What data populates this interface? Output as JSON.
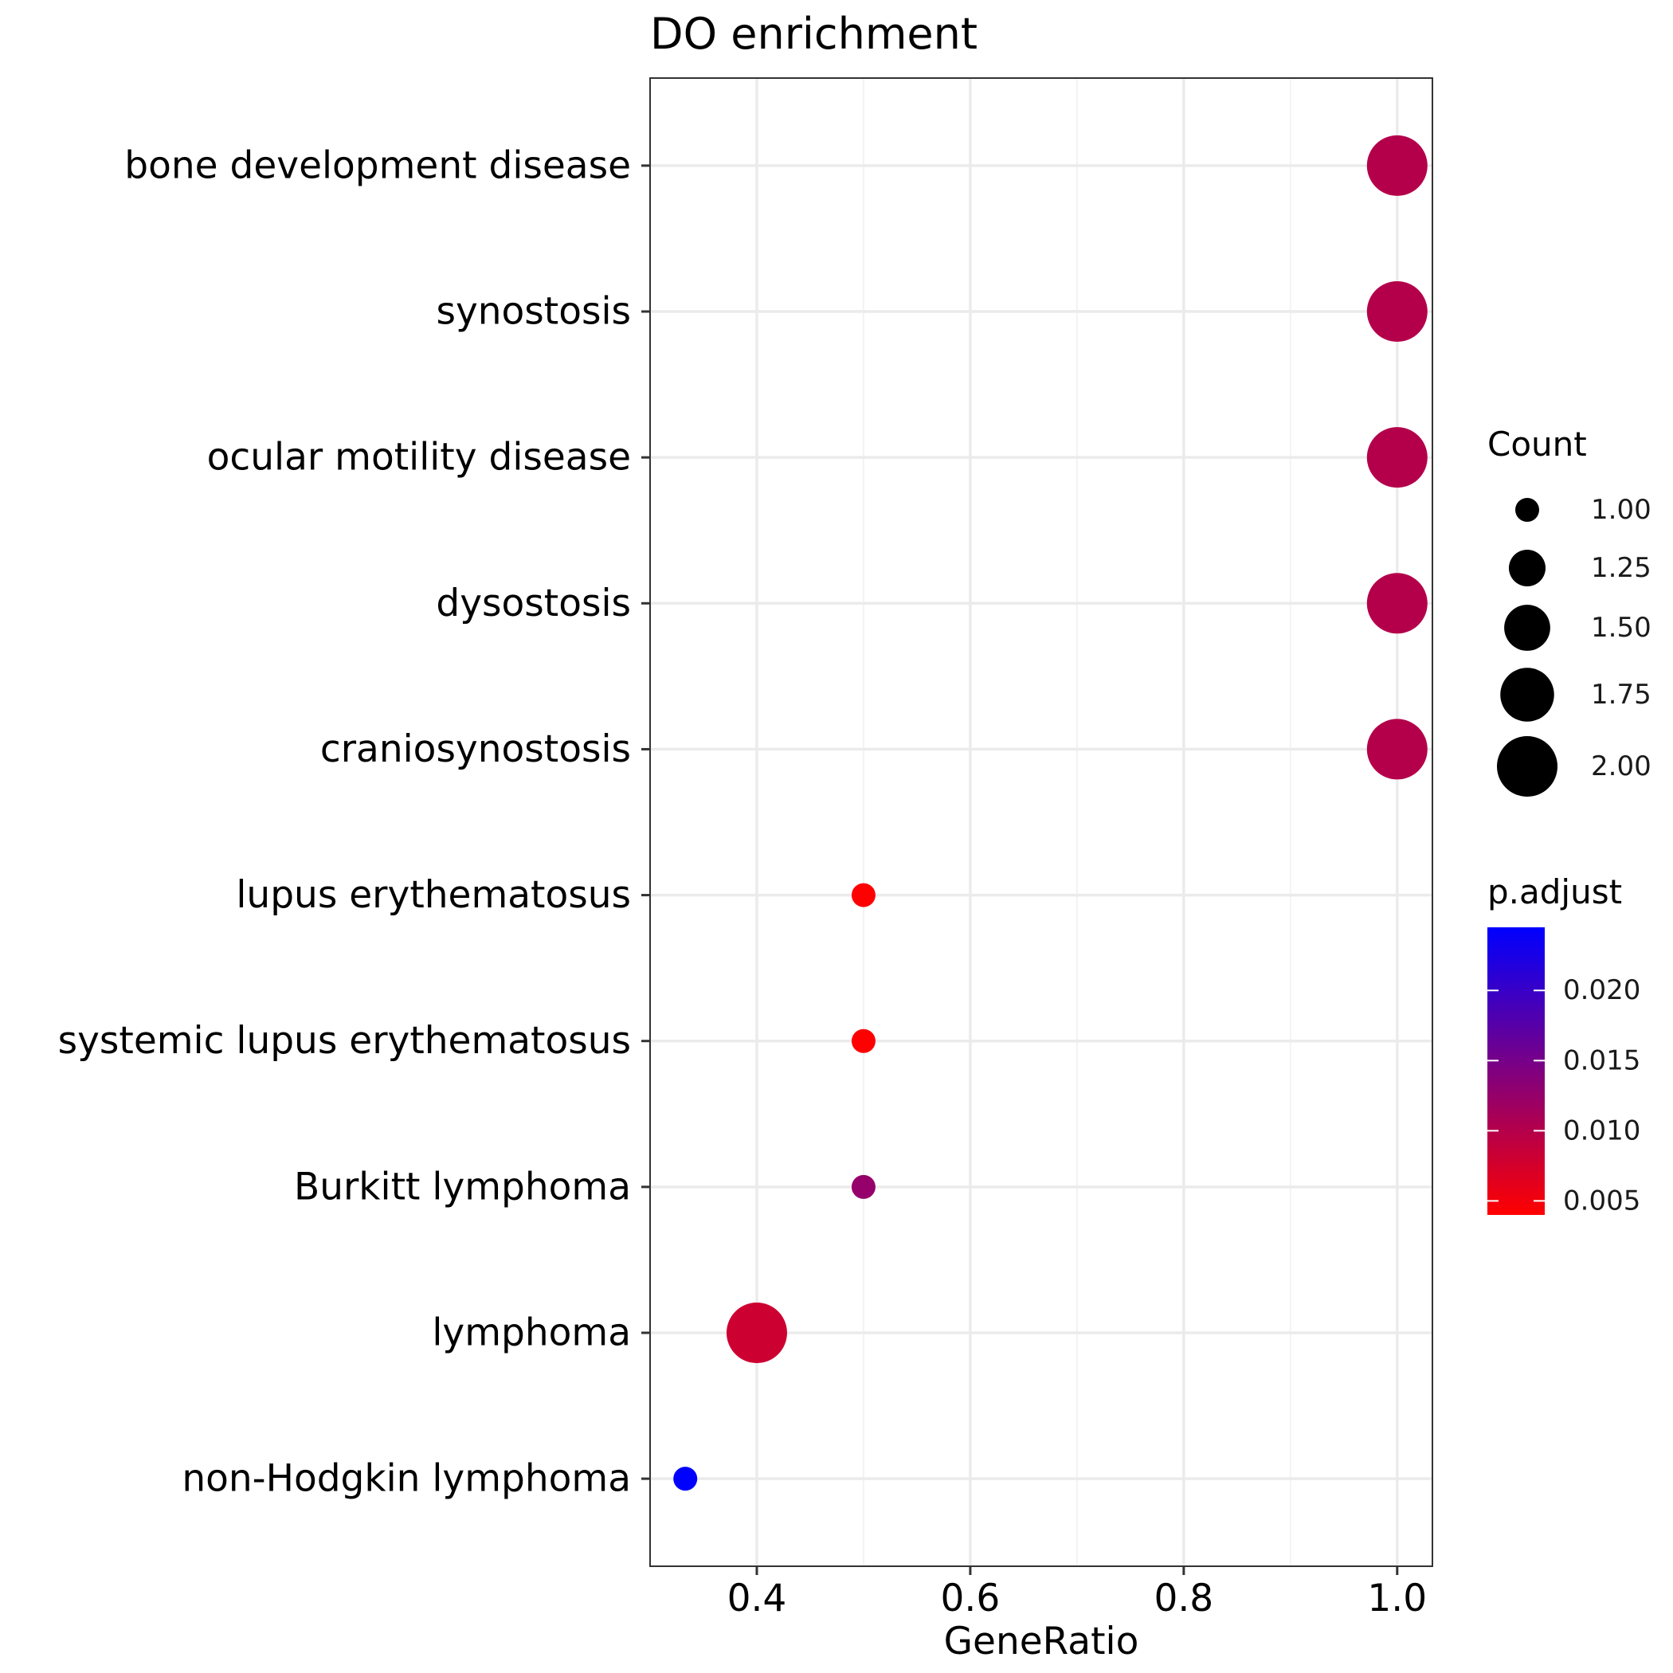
{
  "chart_data": {
    "type": "scatter",
    "title": "DO enrichment",
    "xlabel": "GeneRatio",
    "ylabel": "",
    "xlim": [
      0.3,
      1.033
    ],
    "x_ticks": [
      0.4,
      0.6,
      0.8,
      1.0
    ],
    "x_tick_labels": [
      "0.4",
      "0.6",
      "0.8",
      "1.0"
    ],
    "grid": true,
    "categories": [
      "bone development disease",
      "synostosis",
      "ocular motility disease",
      "dysostosis",
      "craniosynostosis",
      "lupus erythematosus",
      "systemic lupus erythematosus",
      "Burkitt lymphoma",
      "lymphoma",
      "non-Hodgkin lymphoma"
    ],
    "points": [
      {
        "term": "bone development disease",
        "gene_ratio": 1.0,
        "count": 2,
        "p_adjust": 0.01
      },
      {
        "term": "synostosis",
        "gene_ratio": 1.0,
        "count": 2,
        "p_adjust": 0.01
      },
      {
        "term": "ocular motility disease",
        "gene_ratio": 1.0,
        "count": 2,
        "p_adjust": 0.01
      },
      {
        "term": "dysostosis",
        "gene_ratio": 1.0,
        "count": 2,
        "p_adjust": 0.01
      },
      {
        "term": "craniosynostosis",
        "gene_ratio": 1.0,
        "count": 2,
        "p_adjust": 0.01
      },
      {
        "term": "lupus erythematosus",
        "gene_ratio": 0.5,
        "count": 1,
        "p_adjust": 0.004
      },
      {
        "term": "systemic lupus erythematosus",
        "gene_ratio": 0.5,
        "count": 1,
        "p_adjust": 0.004
      },
      {
        "term": "Burkitt lymphoma",
        "gene_ratio": 0.5,
        "count": 1,
        "p_adjust": 0.0125
      },
      {
        "term": "lymphoma",
        "gene_ratio": 0.4,
        "count": 2,
        "p_adjust": 0.008
      },
      {
        "term": "non-Hodgkin lymphoma",
        "gene_ratio": 0.333,
        "count": 1,
        "p_adjust": 0.0245
      }
    ],
    "size_legend": {
      "title": "Count",
      "values": [
        1.0,
        1.25,
        1.5,
        1.75,
        2.0
      ],
      "labels": [
        "1.00",
        "1.25",
        "1.50",
        "1.75",
        "2.00"
      ]
    },
    "color_legend": {
      "title": "p.adjust",
      "range": [
        0.004,
        0.0245
      ],
      "low_color": "#ff0000",
      "high_color": "#0000ff",
      "ticks": [
        0.005,
        0.01,
        0.015,
        0.02
      ],
      "tick_labels": [
        "0.005",
        "0.010",
        "0.015",
        "0.020"
      ]
    },
    "legend_position": "right"
  }
}
